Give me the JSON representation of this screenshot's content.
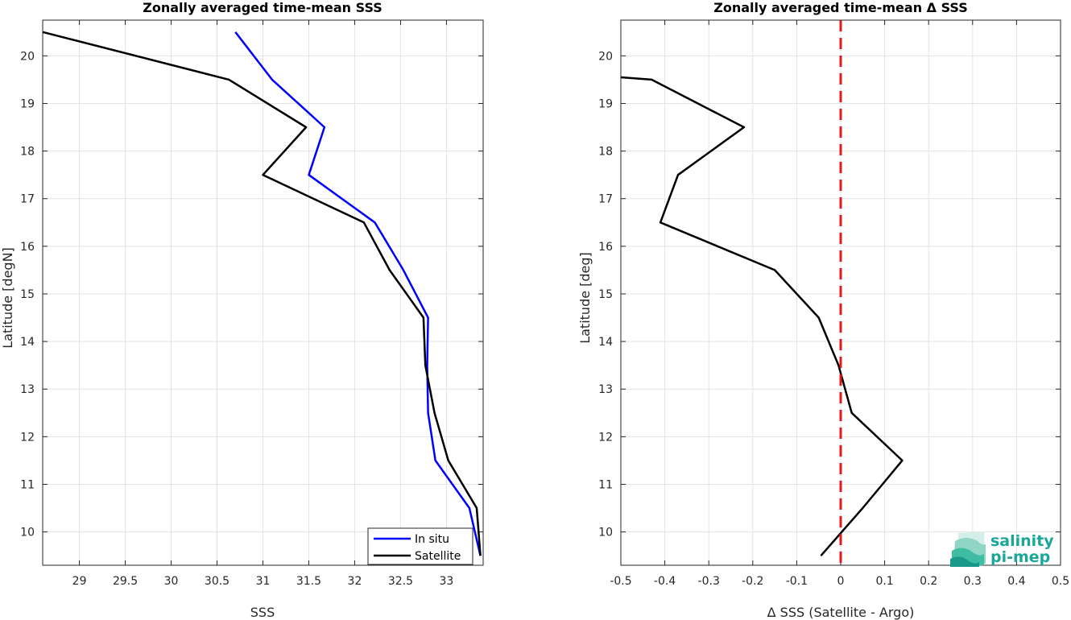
{
  "chart_data": [
    {
      "type": "line",
      "title": "Zonally averaged time-mean SSS",
      "xlabel": "SSS",
      "ylabel": "Latitude [degN]",
      "xlim": [
        28.6,
        33.4
      ],
      "ylim": [
        9.3,
        20.75
      ],
      "xticks": [
        29,
        29.5,
        30,
        30.5,
        31,
        31.5,
        32,
        32.5,
        33
      ],
      "xtick_labels": [
        "29",
        "29.5",
        "30",
        "30.5",
        "31",
        "31.5",
        "32",
        "32.5",
        "33"
      ],
      "yticks": [
        10,
        11,
        12,
        13,
        14,
        15,
        16,
        17,
        18,
        19,
        20
      ],
      "ytick_labels": [
        "10",
        "11",
        "12",
        "13",
        "14",
        "15",
        "16",
        "17",
        "18",
        "19",
        "20"
      ],
      "grid": true,
      "legend": "bottom-right",
      "series": [
        {
          "name": "In situ",
          "color": "#0000ff",
          "lat": [
            20.5,
            19.5,
            18.5,
            17.5,
            16.5,
            15.5,
            14.5,
            13.5,
            12.5,
            11.5,
            10.5,
            9.5
          ],
          "values": [
            30.7,
            31.1,
            31.67,
            31.5,
            32.22,
            32.53,
            32.8,
            32.79,
            32.8,
            32.88,
            33.25,
            33.37
          ]
        },
        {
          "name": "Satellite",
          "color": "#000000",
          "lat": [
            20.5,
            19.5,
            18.5,
            17.5,
            16.5,
            15.5,
            14.5,
            13.5,
            12.5,
            11.5,
            10.5,
            9.5
          ],
          "values": [
            28.6,
            30.63,
            31.47,
            31.0,
            32.1,
            32.38,
            32.75,
            32.77,
            32.87,
            33.02,
            33.33,
            33.37
          ]
        }
      ]
    },
    {
      "type": "line",
      "title": "Zonally averaged time-mean Δ SSS",
      "xlabel": "Δ SSS (Satellite - Argo)",
      "ylabel": "Latitude [deg]",
      "xlim": [
        -0.5,
        0.5
      ],
      "ylim": [
        9.3,
        20.75
      ],
      "xticks": [
        -0.5,
        -0.4,
        -0.3,
        -0.2,
        -0.1,
        0,
        0.1,
        0.2,
        0.3,
        0.4,
        0.5
      ],
      "xtick_labels": [
        "-0.5",
        "-0.4",
        "-0.3",
        "-0.2",
        "-0.1",
        "0",
        "0.1",
        "0.2",
        "0.3",
        "0.4",
        "0.5"
      ],
      "yticks": [
        10,
        11,
        12,
        13,
        14,
        15,
        16,
        17,
        18,
        19,
        20
      ],
      "ytick_labels": [
        "10",
        "11",
        "12",
        "13",
        "14",
        "15",
        "16",
        "17",
        "18",
        "19",
        "20"
      ],
      "grid": true,
      "zero_line": {
        "x": 0,
        "color": "#e31a1c",
        "style": "dashed"
      },
      "series": [
        {
          "color": "#000000",
          "lat": [
            19.55,
            19.5,
            18.5,
            17.5,
            16.5,
            15.5,
            14.5,
            13.5,
            12.5,
            11.5,
            10.5,
            9.5
          ],
          "values": [
            -0.5,
            -0.43,
            -0.22,
            -0.37,
            -0.41,
            -0.15,
            -0.05,
            -0.005,
            0.025,
            0.14,
            0.05,
            -0.045
          ]
        }
      ]
    }
  ],
  "logo": {
    "line1": "salinity",
    "line2": "pi-mep"
  }
}
